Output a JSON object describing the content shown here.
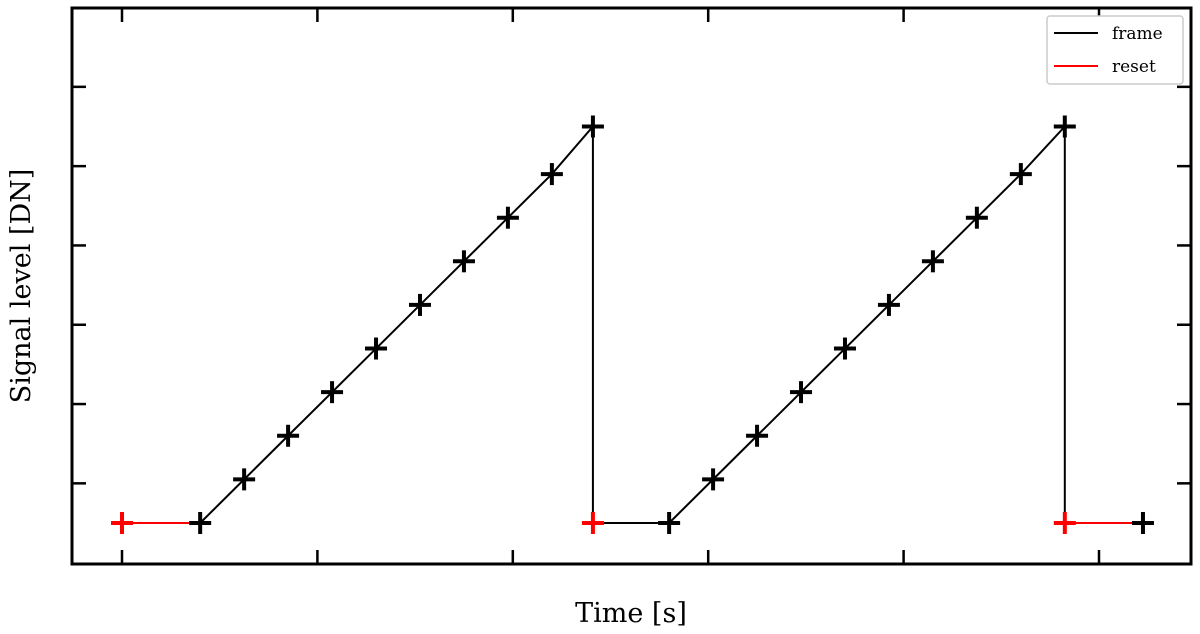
{
  "chart_data": {
    "type": "line",
    "xlabel": "Time [s]",
    "ylabel": "Signal level [DN]",
    "tick_labels_shown": false,
    "xlim": [
      -0.5,
      9.5
    ],
    "ylim": [
      -0.5,
      6.5
    ],
    "xticks": [
      0,
      2,
      4,
      6,
      8,
      10
    ],
    "yticks": [
      0,
      1,
      2,
      3,
      4,
      5
    ],
    "legend": {
      "position": "top-right",
      "entries": [
        {
          "label": "frame",
          "color": "#000000"
        },
        {
          "label": "reset",
          "color": "#ff0000"
        }
      ]
    },
    "series": [
      {
        "name": "frame",
        "color": "#000000",
        "marker": "+",
        "points": [
          [
            0.8,
            0.0
          ],
          [
            1.25,
            0.55
          ],
          [
            1.7,
            1.1
          ],
          [
            2.15,
            1.65
          ],
          [
            2.6,
            2.2
          ],
          [
            3.05,
            2.75
          ],
          [
            3.5,
            3.3
          ],
          [
            3.95,
            3.85
          ],
          [
            4.4,
            4.4
          ],
          [
            4.82,
            5.0
          ],
          [
            4.82,
            0.0
          ],
          [
            5.6,
            0.0
          ],
          [
            6.05,
            0.55
          ],
          [
            6.5,
            1.1
          ],
          [
            6.95,
            1.65
          ],
          [
            7.4,
            2.2
          ],
          [
            7.85,
            2.75
          ],
          [
            8.3,
            3.3
          ],
          [
            8.75,
            3.85
          ],
          [
            9.2,
            4.4
          ],
          [
            9.65,
            5.0
          ],
          [
            9.65,
            0.0
          ]
        ],
        "marker_points": [
          [
            0.8,
            0.0
          ],
          [
            1.25,
            0.55
          ],
          [
            1.7,
            1.1
          ],
          [
            2.15,
            1.65
          ],
          [
            2.6,
            2.2
          ],
          [
            3.05,
            2.75
          ],
          [
            3.5,
            3.3
          ],
          [
            3.95,
            3.85
          ],
          [
            4.4,
            4.4
          ],
          [
            4.82,
            5.0
          ],
          [
            5.6,
            0.0
          ],
          [
            6.05,
            0.55
          ],
          [
            6.5,
            1.1
          ],
          [
            6.95,
            1.65
          ],
          [
            7.4,
            2.2
          ],
          [
            7.85,
            2.75
          ],
          [
            8.3,
            3.3
          ],
          [
            8.75,
            3.85
          ],
          [
            9.2,
            4.4
          ],
          [
            9.65,
            5.0
          ],
          [
            10.45,
            0.0
          ]
        ]
      },
      {
        "name": "reset",
        "color": "#ff0000",
        "marker": "+",
        "segments": [
          [
            [
              0.0,
              0.0
            ],
            [
              0.8,
              0.0
            ]
          ],
          [
            [
              4.82,
              0.0
            ],
            [
              5.6,
              0.0
            ]
          ],
          [
            [
              9.65,
              0.0
            ],
            [
              10.45,
              0.0
            ]
          ]
        ],
        "marker_points": [
          [
            0.0,
            0.0
          ],
          [
            4.82,
            0.0
          ],
          [
            9.65,
            0.0
          ]
        ]
      }
    ]
  }
}
